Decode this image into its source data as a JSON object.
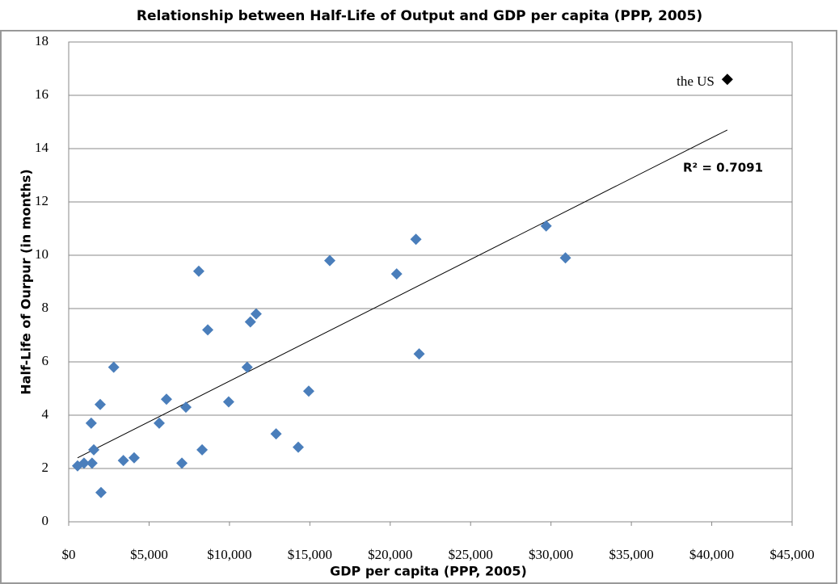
{
  "chart_data": {
    "type": "scatter",
    "title": "Relationship between Half-Life of Output and GDP per capita (PPP, 2005)",
    "x_label": "GDP per capita (PPP, 2005)",
    "y_label": "Half-Life of Ourpur (in months)",
    "series": [
      {
        "color": "#4a7ebb",
        "x": [
          550,
          950,
          1400,
          1450,
          1560,
          1960,
          2010,
          2800,
          3400,
          4070,
          5630,
          6080,
          7040,
          7290,
          8090,
          8300,
          8650,
          9950,
          11100,
          11300,
          11660,
          12900,
          14280,
          14930,
          16240,
          20400,
          21600,
          21800,
          29700,
          30900
        ],
        "values": [
          2.1,
          2.2,
          3.7,
          2.2,
          2.7,
          4.4,
          1.1,
          5.8,
          2.3,
          2.4,
          3.7,
          4.6,
          2.2,
          4.3,
          9.4,
          2.7,
          7.2,
          4.5,
          5.8,
          7.5,
          7.8,
          3.3,
          2.8,
          4.9,
          9.8,
          9.3,
          10.6,
          6.3,
          11.1,
          9.9
        ]
      },
      {
        "name": "the US",
        "color": "#000000",
        "x": [
          40970
        ],
        "values": [
          16.6
        ]
      }
    ],
    "trendline": {
      "x": [
        550,
        40970
      ],
      "y": [
        2.4,
        14.7
      ],
      "color": "#000000",
      "label": "R² = 0.7091"
    },
    "xlim": [
      0,
      45000
    ],
    "xticks": [
      {
        "value": 0,
        "label": "$0"
      },
      {
        "value": 5000,
        "label": "$5,000"
      },
      {
        "value": 10000,
        "label": "$10,000"
      },
      {
        "value": 15000,
        "label": "$15,000"
      },
      {
        "value": 20000,
        "label": "$20,000"
      },
      {
        "value": 25000,
        "label": "$25,000"
      },
      {
        "value": 30000,
        "label": "$30,000"
      },
      {
        "value": 35000,
        "label": "$35,000"
      },
      {
        "value": 40000,
        "label": "$40,000"
      },
      {
        "value": 45000,
        "label": "$45,000"
      }
    ],
    "ylim": [
      0,
      18
    ],
    "yticks": [
      0,
      2,
      4,
      6,
      8,
      10,
      12,
      14,
      16,
      18
    ],
    "grid": true
  }
}
